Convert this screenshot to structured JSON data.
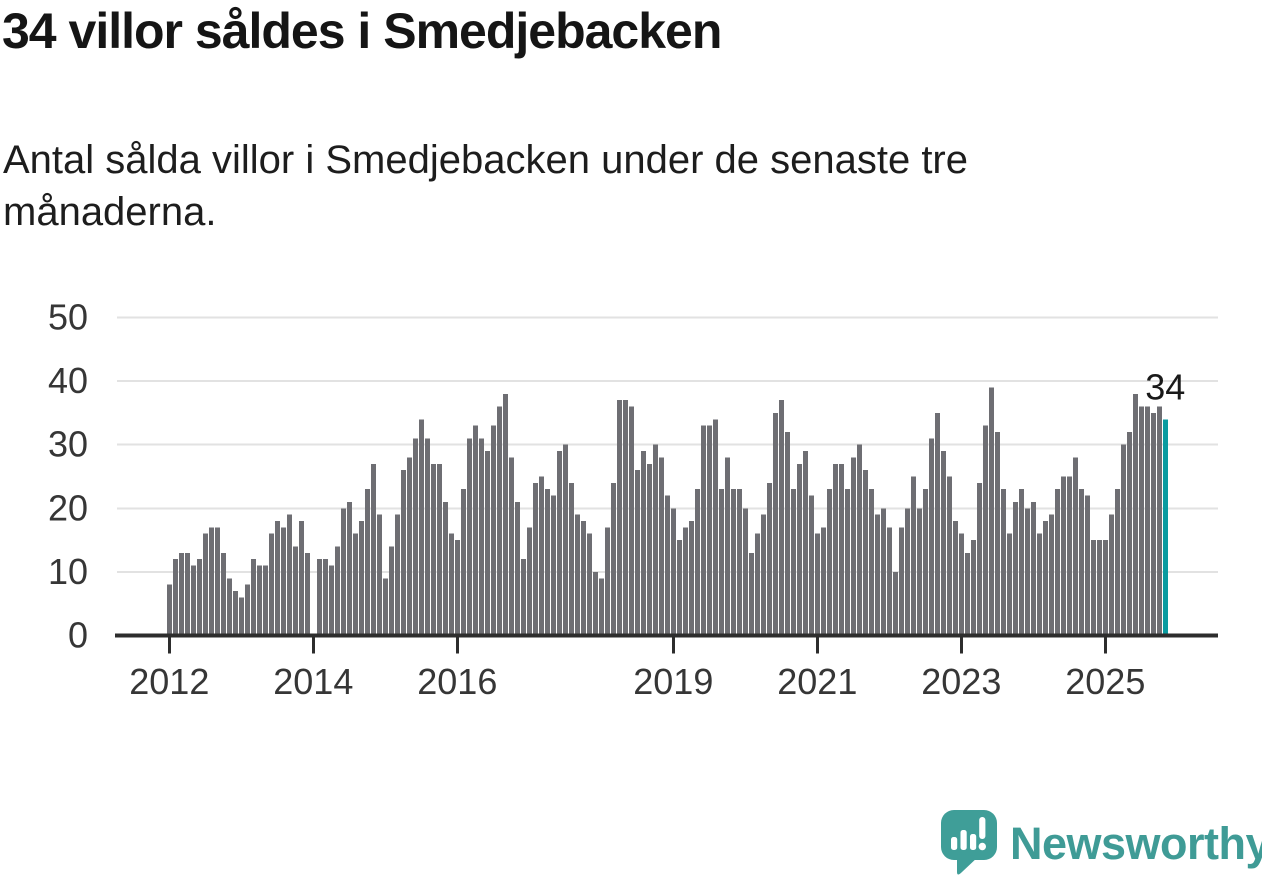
{
  "header": {
    "title": "34 villor såldes i Smedjebacken",
    "subtitle_lines": [
      "Antal sålda villor i Smedjebacken under de senaste tre",
      "månaderna."
    ]
  },
  "chart_data": {
    "type": "bar",
    "title": "34 villor såldes i Smedjebacken",
    "subtitle": "Antal sålda villor i Smedjebacken under de senaste tre månaderna.",
    "ylabel": "",
    "xlabel": "",
    "ylim": [
      0,
      50
    ],
    "yticks": [
      0,
      10,
      20,
      30,
      40,
      50
    ],
    "grid": "horizontal",
    "legend": "none",
    "frequency": "monthly (rolling 3-month count)",
    "x_start_month": "2012-01",
    "x_end_month": "2025-11",
    "xticks": [
      {
        "label": "2012",
        "month_index": 0
      },
      {
        "label": "2014",
        "month_index": 24
      },
      {
        "label": "2016",
        "month_index": 48
      },
      {
        "label": "2019",
        "month_index": 84
      },
      {
        "label": "2021",
        "month_index": 108
      },
      {
        "label": "2023",
        "month_index": 132
      },
      {
        "label": "2025",
        "month_index": 156
      }
    ],
    "values": [
      8,
      12,
      13,
      13,
      11,
      12,
      16,
      17,
      17,
      13,
      9,
      7,
      6,
      8,
      12,
      11,
      11,
      16,
      18,
      17,
      19,
      14,
      18,
      13,
      0,
      12,
      12,
      11,
      14,
      20,
      21,
      16,
      18,
      23,
      27,
      19,
      9,
      14,
      19,
      26,
      28,
      31,
      34,
      31,
      27,
      27,
      21,
      16,
      15,
      23,
      31,
      33,
      31,
      29,
      33,
      36,
      38,
      28,
      21,
      12,
      17,
      24,
      25,
      23,
      22,
      29,
      30,
      24,
      19,
      18,
      16,
      10,
      9,
      17,
      24,
      37,
      37,
      36,
      26,
      29,
      27,
      30,
      28,
      22,
      20,
      15,
      17,
      18,
      23,
      33,
      33,
      34,
      23,
      28,
      23,
      23,
      20,
      13,
      16,
      19,
      24,
      35,
      37,
      32,
      23,
      27,
      29,
      22,
      16,
      17,
      23,
      27,
      27,
      23,
      28,
      30,
      26,
      23,
      19,
      20,
      17,
      10,
      17,
      20,
      25,
      20,
      23,
      31,
      35,
      29,
      25,
      18,
      16,
      13,
      15,
      24,
      33,
      39,
      32,
      23,
      16,
      21,
      23,
      20,
      21,
      16,
      18,
      19,
      23,
      25,
      25,
      28,
      23,
      22,
      15,
      15,
      15,
      19,
      23,
      30,
      32,
      38,
      36,
      36,
      35,
      36,
      34
    ],
    "highlight_index": 166,
    "highlight_value": 34,
    "annotation": "34",
    "bar_color": "#6e6e73",
    "highlight_color": "#0a9ba0",
    "axis_color": "#2d2d2d",
    "grid_color": "#e2e2e2",
    "tick_label_color": "#363636",
    "annotation_color": "#1a1a1a"
  },
  "logo": {
    "wordmark": "Newsworthy",
    "color": "#3f9b96",
    "icon": "newsworthy-speech-bubble-bar-chart-icon",
    "icon_color": "#3f9e98"
  }
}
